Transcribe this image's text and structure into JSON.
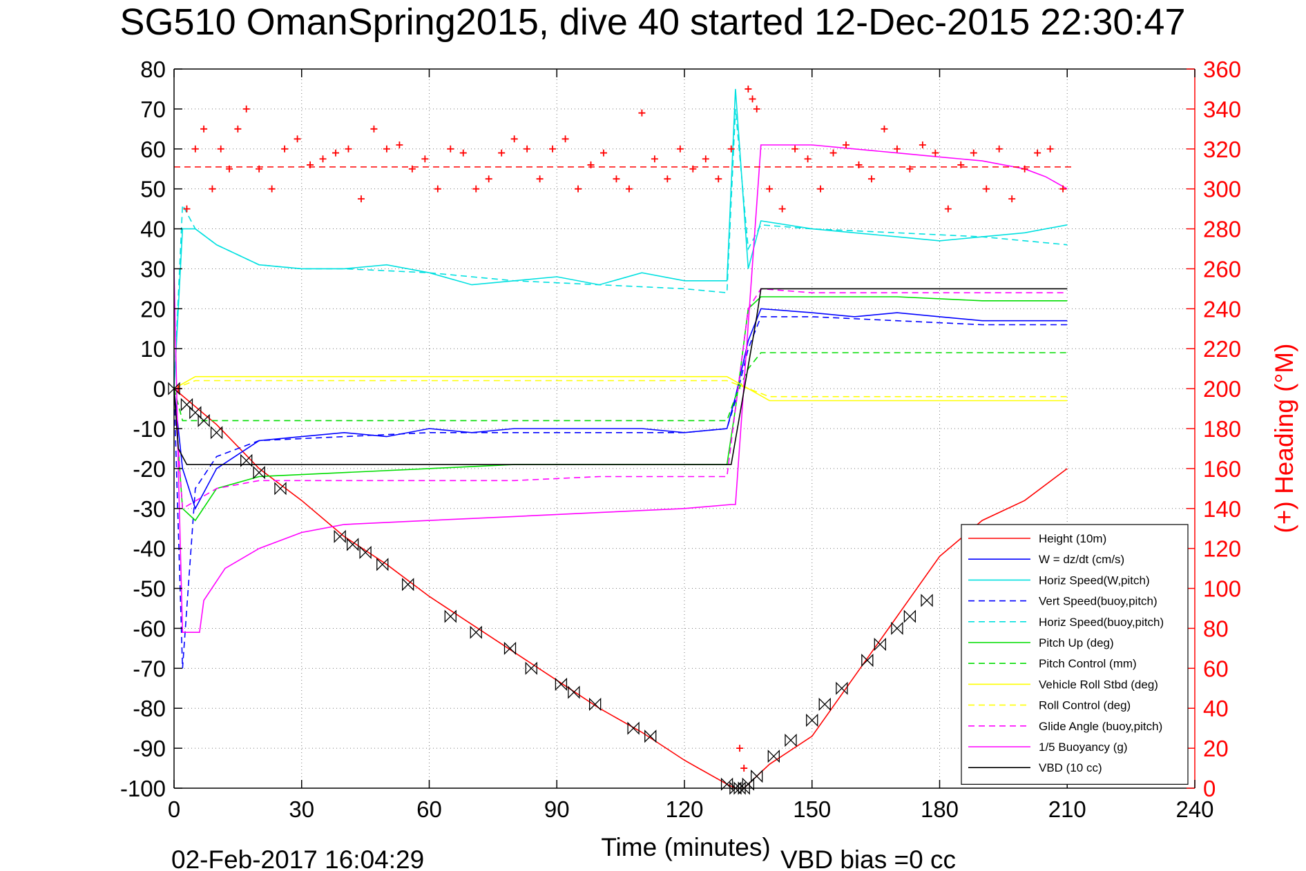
{
  "chart_data": {
    "type": "line",
    "title": "SG510 OmanSpring2015, dive 40 started 12-Dec-2015 22:30:47",
    "xlabel": "Time (minutes)",
    "ylabel_right": "(+) Heading (°M)",
    "footer_left": "02-Feb-2017 16:04:29",
    "footer_right": "VBD bias =0 cc",
    "xlim": [
      0,
      240
    ],
    "ylim_left": [
      -100,
      80
    ],
    "ylim_right": [
      0,
      360
    ],
    "xticks": [
      "0",
      "30",
      "60",
      "90",
      "120",
      "150",
      "180",
      "210",
      "240"
    ],
    "yticks_left": [
      "80",
      "70",
      "60",
      "50",
      "40",
      "30",
      "20",
      "10",
      "0",
      "-10",
      "-20",
      "-30",
      "-40",
      "-50",
      "-60",
      "-70",
      "-80",
      "-90",
      "-100"
    ],
    "yticks_right": [
      "360",
      "340",
      "320",
      "300",
      "280",
      "260",
      "240",
      "220",
      "200",
      "180",
      "160",
      "140",
      "120",
      "100",
      "80",
      "60",
      "40",
      "20",
      "0"
    ],
    "grid": true,
    "legend_position": "bottom-right",
    "series": [
      {
        "name": "Height (10m)",
        "color": "#ff0000",
        "style": "solid",
        "x": [
          0,
          10,
          20,
          30,
          40,
          50,
          60,
          70,
          80,
          90,
          100,
          110,
          120,
          130,
          132,
          134,
          136,
          140,
          150,
          160,
          170,
          180,
          190,
          200,
          210
        ],
        "y": [
          0,
          -9,
          -20,
          -28,
          -37,
          -44,
          -52,
          -59,
          -66,
          -73,
          -80,
          -86,
          -93,
          -99,
          -100,
          -100,
          -98,
          -94,
          -87,
          -72,
          -57,
          -42,
          -33,
          -28,
          -20
        ]
      },
      {
        "name": "W = dz/dt (cm/s)",
        "color": "#0000ff",
        "style": "solid",
        "x": [
          0,
          2,
          5,
          10,
          20,
          30,
          40,
          50,
          60,
          70,
          80,
          90,
          100,
          110,
          120,
          130,
          132,
          135,
          138,
          150,
          160,
          170,
          180,
          190,
          200,
          210
        ],
        "y": [
          0,
          -20,
          -30,
          -20,
          -13,
          -12,
          -11,
          -12,
          -10,
          -11,
          -10,
          -10,
          -10,
          -10,
          -11,
          -10,
          -2,
          12,
          20,
          19,
          18,
          19,
          18,
          17,
          17,
          17
        ]
      },
      {
        "name": "Horiz Speed(W,pitch)",
        "color": "#00e0e0",
        "style": "solid",
        "x": [
          0,
          2,
          5,
          10,
          20,
          30,
          40,
          50,
          60,
          70,
          80,
          90,
          100,
          110,
          120,
          130,
          132,
          135,
          138,
          150,
          160,
          170,
          180,
          190,
          200,
          210
        ],
        "y": [
          0,
          40,
          40,
          36,
          31,
          30,
          30,
          31,
          29,
          26,
          27,
          28,
          26,
          29,
          27,
          27,
          75,
          30,
          42,
          40,
          39,
          38,
          37,
          38,
          39,
          41
        ]
      },
      {
        "name": "Vert Speed(buoy,pitch)",
        "color": "#0000ff",
        "style": "dashed",
        "x": [
          0,
          2,
          5,
          10,
          20,
          40,
          60,
          80,
          100,
          120,
          130,
          132,
          135,
          138,
          150,
          170,
          190,
          210
        ],
        "y": [
          0,
          -70,
          -25,
          -17,
          -13,
          -12,
          -11,
          -11,
          -11,
          -11,
          -10,
          -3,
          10,
          18,
          18,
          17,
          16,
          16
        ]
      },
      {
        "name": "Horiz Speed(buoy,pitch)",
        "color": "#00e0e0",
        "style": "dashed",
        "x": [
          0,
          2,
          5,
          10,
          20,
          30,
          40,
          60,
          80,
          100,
          120,
          130,
          132,
          135,
          138,
          150,
          170,
          190,
          210
        ],
        "y": [
          0,
          46,
          40,
          36,
          31,
          30,
          30,
          29,
          27,
          26,
          25,
          24,
          70,
          35,
          41,
          40,
          39,
          38,
          36
        ]
      },
      {
        "name": "Pitch Up (deg)",
        "color": "#00dd00",
        "style": "solid",
        "x": [
          0,
          2,
          5,
          10,
          20,
          40,
          60,
          80,
          100,
          120,
          130,
          132,
          135,
          138,
          150,
          170,
          190,
          210
        ],
        "y": [
          0,
          -30,
          -33,
          -25,
          -22,
          -21,
          -20,
          -19,
          -19,
          -19,
          -19,
          -5,
          20,
          23,
          23,
          23,
          22,
          22
        ]
      },
      {
        "name": "Pitch Control (mm)",
        "color": "#00dd00",
        "style": "dashed",
        "x": [
          0,
          2,
          10,
          20,
          40,
          60,
          80,
          100,
          120,
          130,
          132,
          135,
          138,
          150,
          170,
          190,
          210
        ],
        "y": [
          0,
          -8,
          -8,
          -8,
          -8,
          -8,
          -8,
          -8,
          -8,
          -8,
          -2,
          5,
          9,
          9,
          9,
          9,
          9
        ]
      },
      {
        "name": "Vehicle Roll Stbd (deg)",
        "color": "#ffff00",
        "style": "solid",
        "x": [
          0,
          5,
          10,
          20,
          40,
          60,
          80,
          100,
          120,
          130,
          135,
          140,
          150,
          170,
          190,
          210
        ],
        "y": [
          0,
          3,
          3,
          3,
          3,
          3,
          3,
          3,
          3,
          3,
          0,
          -3,
          -3,
          -3,
          -3,
          -3
        ]
      },
      {
        "name": "Roll Control (deg)",
        "color": "#ffff00",
        "style": "dashed",
        "x": [
          0,
          5,
          10,
          20,
          40,
          60,
          80,
          100,
          120,
          130,
          135,
          140,
          150,
          170,
          190,
          210
        ],
        "y": [
          0,
          2,
          2,
          2,
          2,
          2,
          2,
          2,
          2,
          2,
          0,
          -2,
          -2,
          -2,
          -2,
          -2
        ]
      },
      {
        "name": "Glide Angle (buoy,pitch)",
        "color": "#ff00ff",
        "style": "dashed",
        "x": [
          0,
          2,
          10,
          20,
          40,
          60,
          80,
          100,
          120,
          130,
          132,
          135,
          138,
          150,
          170,
          190,
          210
        ],
        "y": [
          0,
          -30,
          -25,
          -23,
          -23,
          -23,
          -23,
          -22,
          -22,
          -22,
          -5,
          20,
          25,
          24,
          24,
          24,
          24
        ]
      },
      {
        "name": "1/5 Buoyancy (g)",
        "color": "#ff00ff",
        "style": "solid",
        "x": [
          0,
          1,
          2,
          6,
          7,
          12,
          20,
          30,
          40,
          60,
          80,
          100,
          120,
          131,
          132,
          138,
          150,
          160,
          170,
          180,
          190,
          200,
          205,
          210
        ],
        "y": [
          30,
          -20,
          -61,
          -61,
          -53,
          -45,
          -40,
          -36,
          -34,
          -33,
          -32,
          -31,
          -30,
          -29,
          -29,
          61,
          61,
          60,
          59,
          58,
          57,
          55,
          53,
          50
        ]
      },
      {
        "name": "VBD (10 cc)",
        "color": "#000000",
        "style": "solid",
        "x": [
          0,
          1,
          3,
          131,
          137,
          138,
          210
        ],
        "y": [
          0,
          -15,
          -19,
          -19,
          18,
          25,
          25
        ]
      }
    ],
    "heading": {
      "name": "(+) Heading (°M)",
      "color": "#ff0000",
      "marker": "+",
      "reference_line": 311,
      "x": [
        1,
        3,
        5,
        7,
        9,
        11,
        13,
        15,
        17,
        20,
        23,
        26,
        29,
        32,
        35,
        38,
        41,
        44,
        47,
        50,
        53,
        56,
        59,
        62,
        65,
        68,
        71,
        74,
        77,
        80,
        83,
        86,
        89,
        92,
        95,
        98,
        101,
        104,
        107,
        110,
        113,
        116,
        119,
        122,
        125,
        128,
        131,
        133,
        134,
        135,
        136,
        137,
        140,
        143,
        146,
        149,
        152,
        155,
        158,
        161,
        164,
        167,
        170,
        173,
        176,
        179,
        182,
        185,
        188,
        191,
        194,
        197,
        200,
        203,
        206,
        209
      ],
      "y": [
        200,
        290,
        320,
        330,
        300,
        320,
        310,
        330,
        340,
        310,
        300,
        320,
        325,
        312,
        315,
        318,
        320,
        295,
        330,
        320,
        322,
        310,
        315,
        300,
        320,
        318,
        300,
        305,
        318,
        325,
        320,
        305,
        320,
        325,
        300,
        312,
        318,
        305,
        300,
        338,
        315,
        305,
        320,
        310,
        315,
        305,
        320,
        20,
        10,
        350,
        345,
        340,
        300,
        290,
        320,
        315,
        300,
        318,
        322,
        312,
        305,
        330,
        320,
        310,
        322,
        318,
        290,
        312,
        318,
        300,
        320,
        295,
        310,
        318,
        320,
        300
      ]
    },
    "markers": {
      "name": "sample markers",
      "marker": "hourglass",
      "x": [
        0,
        3,
        5,
        7,
        10,
        17,
        20,
        25,
        39,
        42,
        45,
        49,
        55,
        65,
        71,
        79,
        84,
        91,
        94,
        99,
        108,
        112,
        130,
        132,
        133,
        134,
        135,
        137,
        141,
        145,
        150,
        153,
        157,
        163,
        166,
        170,
        173,
        177
      ],
      "y": [
        0,
        -4,
        -6,
        -8,
        -11,
        -18,
        -21,
        -25,
        -37,
        -39,
        -41,
        -44,
        -49,
        -57,
        -61,
        -65,
        -70,
        -74,
        -76,
        -79,
        -85,
        -87,
        -99,
        -100,
        -100,
        -100,
        -99,
        -97,
        -92,
        -88,
        -83,
        -79,
        -75,
        -68,
        -64,
        -60,
        -57,
        -53
      ]
    }
  }
}
